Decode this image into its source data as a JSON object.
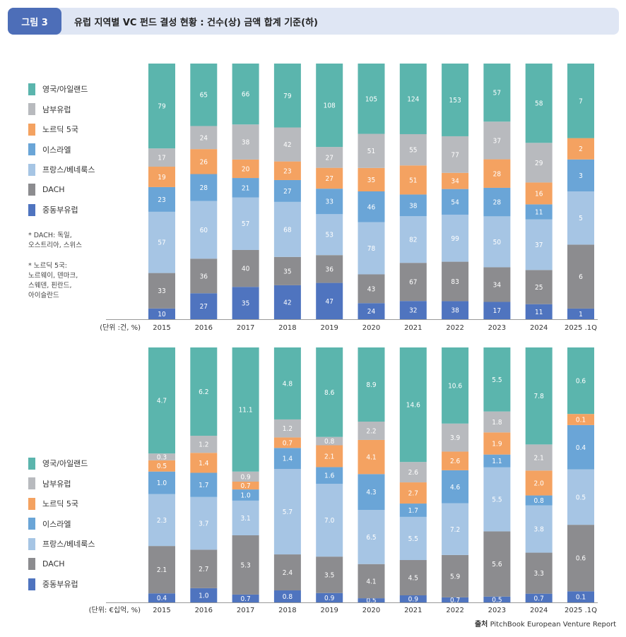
{
  "header": {
    "figure_tag": "그림 3",
    "title": "유럽 지역별 VC 펀드 결성 현황 : 건수(상) 금액 합계 기준(하)"
  },
  "legend": [
    {
      "name": "영국/아일랜드",
      "color": "#5bb5ad"
    },
    {
      "name": "남부유럽",
      "color": "#b8babe"
    },
    {
      "name": "노르딕 5국",
      "color": "#f4a261"
    },
    {
      "name": "이스라엘",
      "color": "#6aa5d7"
    },
    {
      "name": "프랑스/베네룩스",
      "color": "#a6c5e4"
    },
    {
      "name": "DACH",
      "color": "#8c8c8f"
    },
    {
      "name": "중동부유럽",
      "color": "#4f74bf"
    }
  ],
  "notes": [
    {
      "bullet": "*",
      "text": "DACH: 독일,\n오스트리아, 스위스"
    },
    {
      "bullet": "*",
      "text": "노르딕 5국:\n노르웨이, 덴마크,\n스웨덴, 핀란드,\n아이슬란드"
    }
  ],
  "source": {
    "label": "출처",
    "text": "PitchBook European Venture Report"
  },
  "chart_data": [
    {
      "type": "bar",
      "stacked": true,
      "normalized": true,
      "unit_label": "(단위 :건, %)",
      "categories": [
        "2015",
        "2016",
        "2017",
        "2018",
        "2019",
        "2020",
        "2021",
        "2022",
        "2023",
        "2024",
        "2025 .1Q"
      ],
      "series": [
        {
          "name": "중동부유럽",
          "color": "#4f74bf",
          "values": [
            10,
            27,
            35,
            42,
            47,
            24,
            32,
            38,
            17,
            11,
            1
          ]
        },
        {
          "name": "DACH",
          "color": "#8c8c8f",
          "values": [
            33,
            36,
            40,
            35,
            36,
            43,
            67,
            83,
            34,
            25,
            6
          ]
        },
        {
          "name": "프랑스/베네룩스",
          "color": "#a6c5e4",
          "values": [
            57,
            60,
            57,
            68,
            53,
            78,
            82,
            99,
            50,
            37,
            5
          ]
        },
        {
          "name": "이스라엘",
          "color": "#6aa5d7",
          "values": [
            23,
            28,
            21,
            27,
            33,
            46,
            38,
            54,
            28,
            11,
            3
          ]
        },
        {
          "name": "노르딕 5국",
          "color": "#f4a261",
          "values": [
            19,
            26,
            20,
            23,
            27,
            35,
            51,
            34,
            28,
            16,
            2
          ]
        },
        {
          "name": "남부유럽",
          "color": "#b8babe",
          "values": [
            17,
            24,
            38,
            42,
            27,
            51,
            55,
            77,
            37,
            29,
            0
          ]
        },
        {
          "name": "영국/아일랜드",
          "color": "#5bb5ad",
          "values": [
            79,
            65,
            66,
            79,
            108,
            105,
            124,
            153,
            57,
            58,
            7
          ]
        }
      ]
    },
    {
      "type": "bar",
      "stacked": true,
      "normalized": true,
      "unit_label": "(단위: €십억, %)",
      "categories": [
        "2015",
        "2016",
        "2017",
        "2018",
        "2019",
        "2020",
        "2021",
        "2022",
        "2023",
        "2024",
        "2025 .1Q"
      ],
      "series": [
        {
          "name": "중동부유럽",
          "color": "#4f74bf",
          "values": [
            "0.4",
            "1.0",
            "0.7",
            "0.8",
            "0.9",
            "0.5",
            "0.9",
            "0.7",
            "0.5",
            "0.7",
            "0.1"
          ]
        },
        {
          "name": "DACH",
          "color": "#8c8c8f",
          "values": [
            "2.1",
            "2.7",
            "5.3",
            "2.4",
            "3.5",
            "4.1",
            "4.5",
            "5.9",
            "5.6",
            "3.3",
            "0.6"
          ]
        },
        {
          "name": "프랑스/베네룩스",
          "color": "#a6c5e4",
          "values": [
            "2.3",
            "3.7",
            "3.1",
            "5.7",
            "7.0",
            "6.5",
            "5.5",
            "7.2",
            "5.5",
            "3.8",
            "0.5"
          ]
        },
        {
          "name": "이스라엘",
          "color": "#6aa5d7",
          "values": [
            "1.0",
            "1.7",
            "1.0",
            "1.4",
            "1.6",
            "4.3",
            "1.7",
            "4.6",
            "1.1",
            "0.8",
            "0.4"
          ]
        },
        {
          "name": "노르딕 5국",
          "color": "#f4a261",
          "values": [
            "0.5",
            "1.4",
            "0.7",
            "0.7",
            "2.1",
            "4.1",
            "2.7",
            "2.6",
            "1.9",
            "2.0",
            "0.1"
          ]
        },
        {
          "name": "남부유럽",
          "color": "#b8babe",
          "values": [
            "0.3",
            "1.2",
            "0.9",
            "1.2",
            "0.8",
            "2.2",
            "2.6",
            "3.9",
            "1.8",
            "2.1",
            "0"
          ]
        },
        {
          "name": "영국/아일랜드",
          "color": "#5bb5ad",
          "values": [
            "4.7",
            "6.2",
            "11.1",
            "4.8",
            "8.6",
            "8.9",
            "14.6",
            "10.6",
            "5.5",
            "7.8",
            "0.6"
          ]
        }
      ]
    }
  ]
}
